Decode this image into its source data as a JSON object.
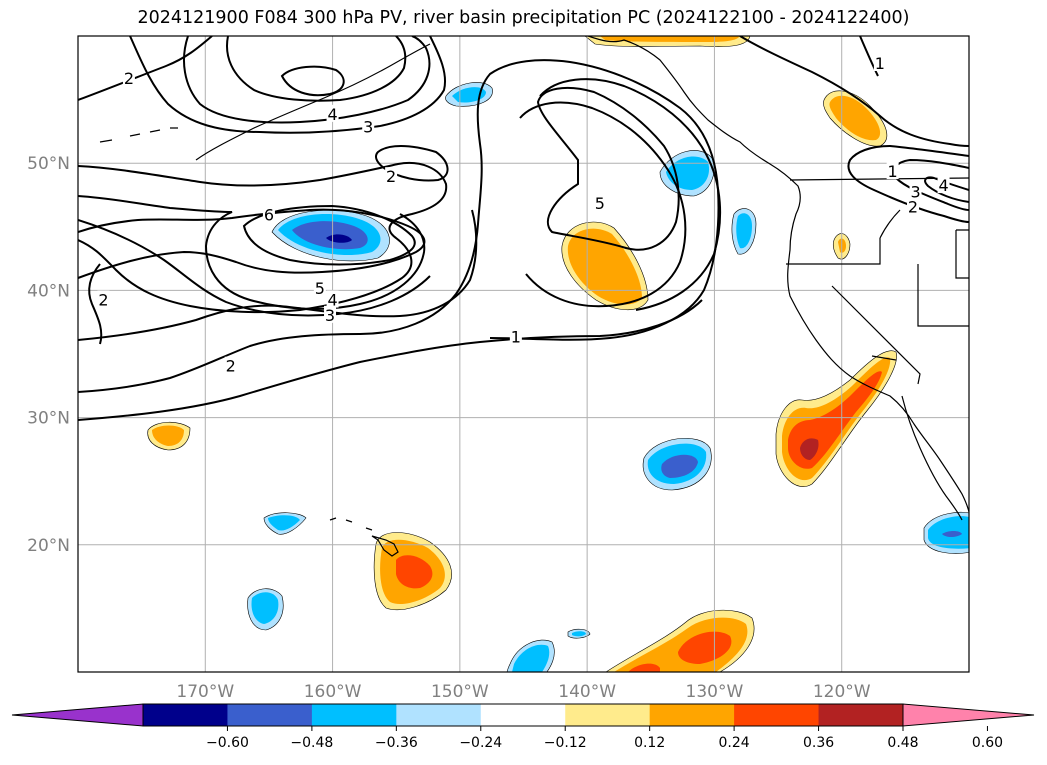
{
  "title": "2024121900 F084 300 hPa PV, river basin precipitation PC (2024122100 - 2024122400)",
  "map": {
    "extent": {
      "lon": [
        -180,
        -110
      ],
      "lat": [
        10,
        60
      ]
    },
    "xticks": [
      {
        "lon": -170,
        "label": "170°W"
      },
      {
        "lon": -160,
        "label": "160°W"
      },
      {
        "lon": -150,
        "label": "150°W"
      },
      {
        "lon": -140,
        "label": "140°W"
      },
      {
        "lon": -130,
        "label": "130°W"
      },
      {
        "lon": -120,
        "label": "120°W"
      }
    ],
    "yticks": [
      {
        "lat": 20,
        "label": "20°N"
      },
      {
        "lat": 30,
        "label": "30°N"
      },
      {
        "lat": 40,
        "label": "40°N"
      },
      {
        "lat": 50,
        "label": "50°N"
      }
    ],
    "gridlines": true,
    "tick_color": "#808080"
  },
  "contour_labels": [
    {
      "text": "2",
      "lon": -176,
      "lat": 56.6
    },
    {
      "text": "4",
      "lon": -160,
      "lat": 53.8
    },
    {
      "text": "3",
      "lon": -157.2,
      "lat": 52.8
    },
    {
      "text": "2",
      "lon": -155.4,
      "lat": 48.9
    },
    {
      "text": "6",
      "lon": -165,
      "lat": 45.9
    },
    {
      "text": "5",
      "lon": -161,
      "lat": 40.1
    },
    {
      "text": "4",
      "lon": -160,
      "lat": 39.2
    },
    {
      "text": "3",
      "lon": -160.2,
      "lat": 38.0
    },
    {
      "text": "2",
      "lon": -178,
      "lat": 39.2
    },
    {
      "text": "2",
      "lon": -168,
      "lat": 34.0
    },
    {
      "text": "1",
      "lon": -145.6,
      "lat": 36.3
    },
    {
      "text": "5",
      "lon": -139,
      "lat": 46.8
    },
    {
      "text": "1",
      "lon": -117,
      "lat": 57.8
    },
    {
      "text": "1",
      "lon": -116,
      "lat": 49.3
    },
    {
      "text": "3",
      "lon": -114.2,
      "lat": 47.7
    },
    {
      "text": "2",
      "lon": -114.4,
      "lat": 46.5
    },
    {
      "text": "4",
      "lon": -112,
      "lat": 48.2
    }
  ],
  "colorbar": {
    "ticks": [
      "−0.60",
      "−0.48",
      "−0.36",
      "−0.24",
      "−0.12",
      "0.12",
      "0.24",
      "0.36",
      "0.48",
      "0.60"
    ],
    "colors": [
      "#9932cc",
      "#00008b",
      "#3a5fcd",
      "#00bfff",
      "#b0e2ff",
      "#ffffff",
      "#ffeb8c",
      "#ffa500",
      "#ff4500",
      "#b22222",
      "#ff82ab"
    ]
  },
  "precip_colors": {
    "neg1": "#b0e2ff",
    "neg2": "#00bfff",
    "neg3": "#3a5fcd",
    "neg4": "#00008b",
    "pos1": "#ffeb8c",
    "pos2": "#ffa500",
    "pos3": "#ff4500",
    "pos4": "#b22222"
  }
}
